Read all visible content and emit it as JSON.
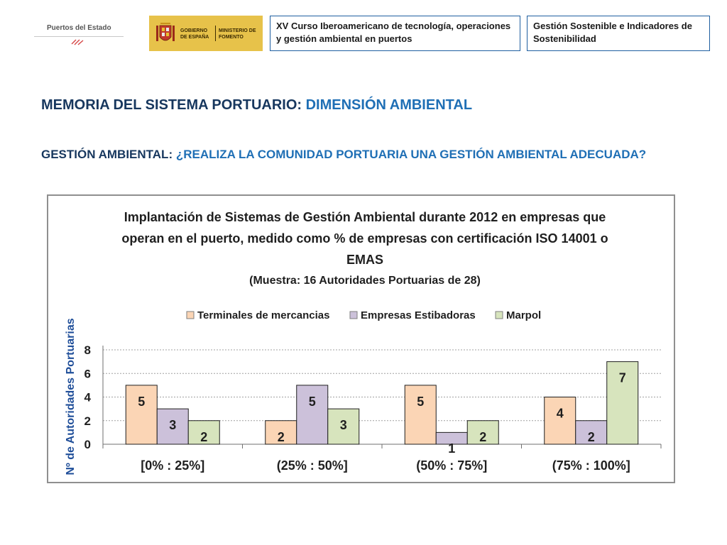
{
  "header": {
    "logo_puertos_label": "Puertos del Estado",
    "gobierno_label": "GOBIERNO DE ESPAÑA",
    "ministerio_label": "MINISTERIO DE FOMENTO",
    "course_title": "XV Curso Iberoamericano de tecnología, operaciones y gestión ambiental en puertos",
    "module_title": "Gestión Sostenible e Indicadores de Sostenibilidad"
  },
  "page": {
    "title_prefix": "MEMORIA DEL SISTEMA PORTUARIO: ",
    "title_highlight": "DIMENSIÓN AMBIENTAL",
    "subtitle_prefix": "GESTIÓN AMBIENTAL: ",
    "subtitle_highlight": "¿REALIZA LA COMUNIDAD PORTUARIA UNA GESTIÓN AMBIENTAL ADECUADA?"
  },
  "colors": {
    "title_dark": "#17375e",
    "title_accent": "#1f6fb5",
    "series_terminales": "#fbd5b5",
    "series_estibadoras": "#ccc1da",
    "series_marpol": "#d7e4bd",
    "axis_label": "#1f4e99"
  },
  "chart_data": {
    "type": "bar",
    "title_lines": [
      "Implantación de Sistemas de Gestión Ambiental  durante 2012 en empresas que",
      "operan en el puerto, medido como % de empresas con certificación ISO 14001 o",
      "EMAS"
    ],
    "subtitle": "(Muestra: 16 Autoridades Portuarias de 28)",
    "xlabel": "",
    "ylabel": "Nº de Autoridades Portuarias",
    "categories": [
      "[0% : 25%]",
      "(25% : 50%]",
      "(50% : 75%]",
      "(75% : 100%]"
    ],
    "series": [
      {
        "name": "Terminales de mercancias",
        "values": [
          5,
          2,
          5,
          4
        ],
        "color": "#fbd5b5"
      },
      {
        "name": "Empresas Estibadoras",
        "values": [
          3,
          5,
          1,
          2
        ],
        "color": "#ccc1da"
      },
      {
        "name": "Marpol",
        "values": [
          2,
          3,
          2,
          7
        ],
        "color": "#d7e4bd"
      }
    ],
    "ylim": [
      0,
      8
    ],
    "yticks": [
      0,
      2,
      4,
      6,
      8
    ],
    "grid": true,
    "legend_position": "top"
  }
}
